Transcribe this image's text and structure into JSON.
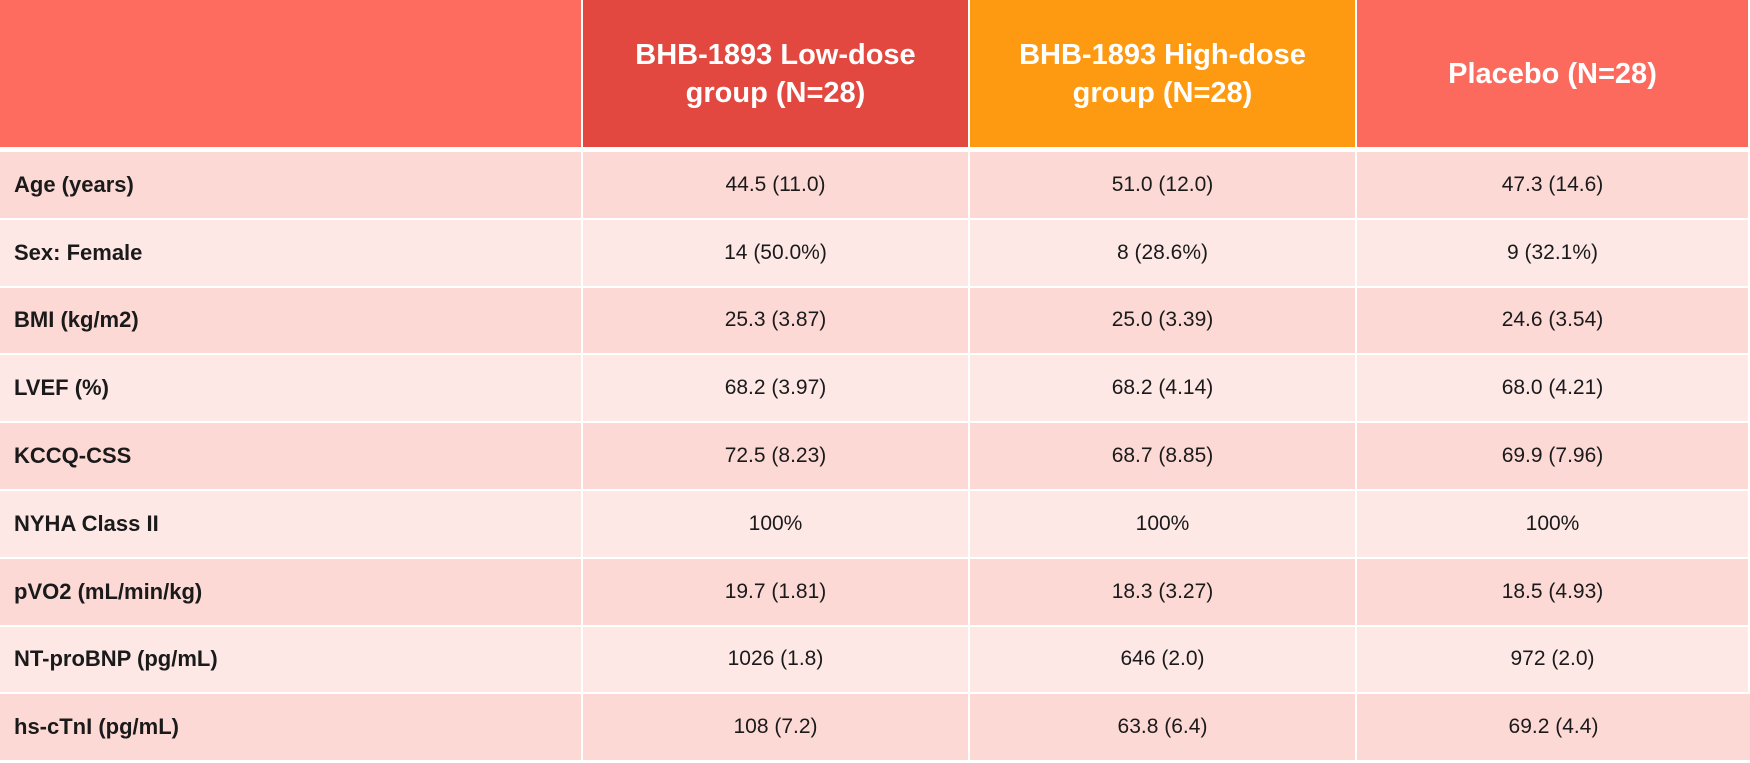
{
  "table": {
    "headers": [
      "",
      "BHB-1893 Low-dose group (N=28)",
      "BHB-1893 High-dose group (N=28)",
      "Placebo (N=28)"
    ],
    "rows": [
      {
        "label": "Age (years)",
        "values": [
          "44.5 (11.0)",
          "51.0 (12.0)",
          "47.3 (14.6)"
        ]
      },
      {
        "label": "Sex: Female",
        "values": [
          "14 (50.0%)",
          "8 (28.6%)",
          "9 (32.1%)"
        ]
      },
      {
        "label": "BMI (kg/m2)",
        "values": [
          "25.3 (3.87)",
          "25.0 (3.39)",
          "24.6 (3.54)"
        ]
      },
      {
        "label": "LVEF (%)",
        "values": [
          "68.2 (3.97)",
          "68.2 (4.14)",
          "68.0 (4.21)"
        ]
      },
      {
        "label": "KCCQ-CSS",
        "values": [
          "72.5 (8.23)",
          "68.7 (8.85)",
          "69.9 (7.96)"
        ]
      },
      {
        "label": "NYHA Class II",
        "values": [
          "100%",
          "100%",
          "100%"
        ]
      },
      {
        "label": "pVO2 (mL/min/kg)",
        "values": [
          "19.7 (1.81)",
          "18.3 (3.27)",
          "18.5 (4.93)"
        ]
      },
      {
        "label": "NT-proBNP (pg/mL)",
        "values": [
          "1026 (1.8)",
          "646 (2.0)",
          "972 (2.0)"
        ]
      },
      {
        "label": "hs-cTnI (pg/mL)",
        "values": [
          "108 (7.2)",
          "63.8 (6.4)",
          "69.2 (4.4)"
        ]
      }
    ]
  },
  "colors": {
    "header_blank": "#fe6b5f",
    "header_low_dose": "#e2483f",
    "header_high_dose": "#fe9a12",
    "header_placebo": "#fc6a5e",
    "row_odd": "#fdd9d6",
    "row_even": "#fde8e6"
  }
}
